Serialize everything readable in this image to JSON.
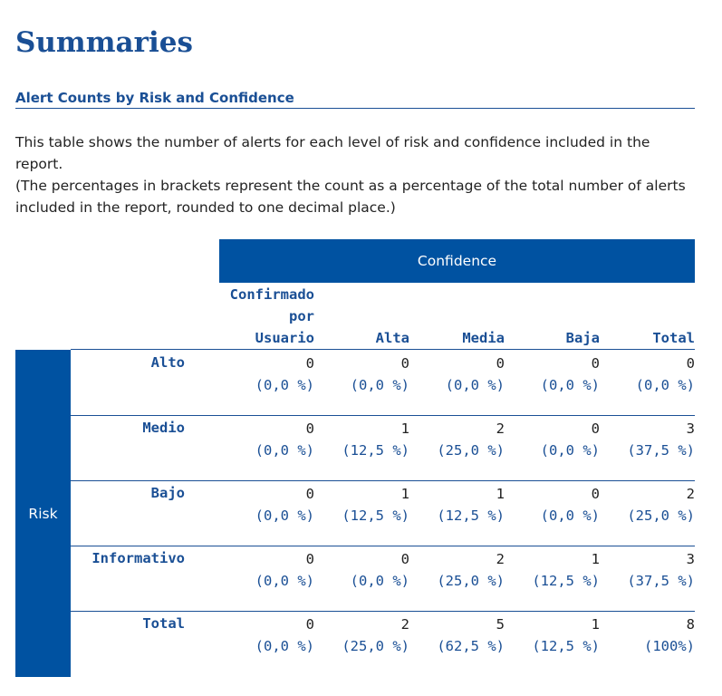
{
  "title": "Summaries",
  "section_heading": "Alert Counts by Risk and Confidence",
  "paragraphs": [
    "This table shows the number of alerts for each level of risk and confidence included in the report.",
    "(The percentages in brackets represent the count as a percentage of the total number of alerts included in the report, rounded to one decimal place.)"
  ],
  "table": {
    "confidence_label": "Confidence",
    "risk_label": "Risk",
    "columns": [
      [
        "Confirmado",
        "por",
        "Usuario"
      ],
      [
        "Alta"
      ],
      [
        "Media"
      ],
      [
        "Baja"
      ],
      [
        "Total"
      ]
    ],
    "rows": [
      {
        "label": "Alto",
        "cells": [
          {
            "count": "0",
            "pct": "(0,0 %)"
          },
          {
            "count": "0",
            "pct": "(0,0 %)"
          },
          {
            "count": "0",
            "pct": "(0,0 %)"
          },
          {
            "count": "0",
            "pct": "(0,0 %)"
          },
          {
            "count": "0",
            "pct": "(0,0 %)"
          }
        ]
      },
      {
        "label": "Medio",
        "cells": [
          {
            "count": "0",
            "pct": "(0,0 %)"
          },
          {
            "count": "1",
            "pct": "(12,5 %)"
          },
          {
            "count": "2",
            "pct": "(25,0 %)"
          },
          {
            "count": "0",
            "pct": "(0,0 %)"
          },
          {
            "count": "3",
            "pct": "(37,5 %)"
          }
        ]
      },
      {
        "label": "Bajo",
        "cells": [
          {
            "count": "0",
            "pct": "(0,0 %)"
          },
          {
            "count": "1",
            "pct": "(12,5 %)"
          },
          {
            "count": "1",
            "pct": "(12,5 %)"
          },
          {
            "count": "0",
            "pct": "(0,0 %)"
          },
          {
            "count": "2",
            "pct": "(25,0 %)"
          }
        ]
      },
      {
        "label": "Informativo",
        "cells": [
          {
            "count": "0",
            "pct": "(0,0 %)"
          },
          {
            "count": "0",
            "pct": "(0,0 %)"
          },
          {
            "count": "2",
            "pct": "(25,0 %)"
          },
          {
            "count": "1",
            "pct": "(12,5 %)"
          },
          {
            "count": "3",
            "pct": "(37,5 %)"
          }
        ]
      },
      {
        "label": "Total",
        "cells": [
          {
            "count": "0",
            "pct": "(0,0 %)"
          },
          {
            "count": "2",
            "pct": "(25,0 %)"
          },
          {
            "count": "5",
            "pct": "(62,5 %)"
          },
          {
            "count": "1",
            "pct": "(12,5 %)"
          },
          {
            "count": "8",
            "pct": "(100%)"
          }
        ]
      }
    ]
  },
  "colors": {
    "accent": "#1a4f95",
    "header_fill": "#0052a1",
    "text": "#222222"
  }
}
